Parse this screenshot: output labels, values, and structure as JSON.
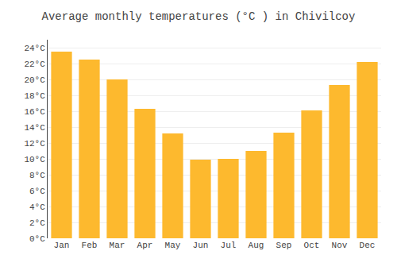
{
  "chart_data": {
    "type": "bar",
    "title": "Average monthly temperatures (°C ) in Chivilcoy",
    "categories": [
      "Jan",
      "Feb",
      "Mar",
      "Apr",
      "May",
      "Jun",
      "Jul",
      "Aug",
      "Sep",
      "Oct",
      "Nov",
      "Dec"
    ],
    "values": [
      23.5,
      22.5,
      20.0,
      16.3,
      13.2,
      9.9,
      10.0,
      11.0,
      13.3,
      16.1,
      19.3,
      22.2
    ],
    "color": "#FDB92E",
    "ylim": [
      0,
      25
    ],
    "yticks": [
      {
        "value": 0,
        "label": "0°C"
      },
      {
        "value": 2,
        "label": "2°C"
      },
      {
        "value": 4,
        "label": "4°C"
      },
      {
        "value": 6,
        "label": "6°C"
      },
      {
        "value": 8,
        "label": "8°C"
      },
      {
        "value": 10,
        "label": "10°C"
      },
      {
        "value": 12,
        "label": "12°C"
      },
      {
        "value": 14,
        "label": "14°C"
      },
      {
        "value": 16,
        "label": "16°C"
      },
      {
        "value": 18,
        "label": "18°C"
      },
      {
        "value": 20,
        "label": "20°C"
      },
      {
        "value": 22,
        "label": "22°C"
      },
      {
        "value": 24,
        "label": "24°C"
      }
    ],
    "grid": true
  }
}
